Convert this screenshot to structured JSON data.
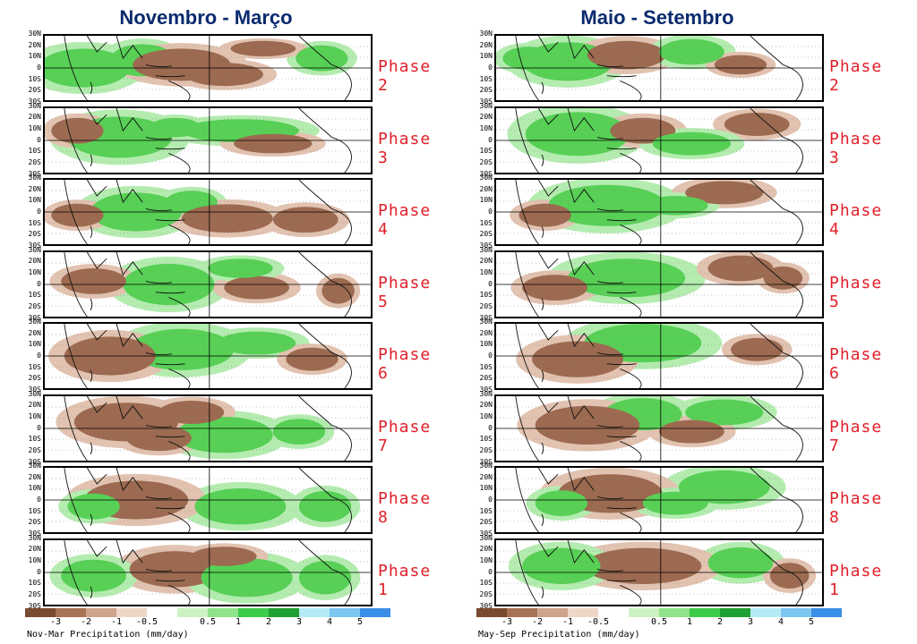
{
  "columns": [
    {
      "title": "Novembro - Março",
      "colorbar_caption": "Nov-Mar Precipitation (mm/day)",
      "phases": [
        {
          "label": "Phase 2",
          "blobs": [
            [
              0.14,
              0.55,
              0.05,
              0.16,
              "blue"
            ],
            [
              0.12,
              0.5,
              0.14,
              0.3,
              "green"
            ],
            [
              0.3,
              0.38,
              0.1,
              0.25,
              "green"
            ],
            [
              0.42,
              0.45,
              0.15,
              0.25,
              "brown"
            ],
            [
              0.55,
              0.6,
              0.12,
              0.18,
              "brown"
            ],
            [
              0.85,
              0.35,
              0.08,
              0.2,
              "green"
            ],
            [
              0.67,
              0.2,
              0.1,
              0.12,
              "brown"
            ]
          ]
        },
        {
          "label": "Phase 3",
          "blobs": [
            [
              0.25,
              0.48,
              0.07,
              0.22,
              "blue"
            ],
            [
              0.23,
              0.45,
              0.16,
              0.32,
              "green"
            ],
            [
              0.1,
              0.35,
              0.08,
              0.2,
              "brown"
            ],
            [
              0.6,
              0.35,
              0.18,
              0.18,
              "green"
            ],
            [
              0.7,
              0.55,
              0.12,
              0.15,
              "brown"
            ],
            [
              0.4,
              0.3,
              0.08,
              0.15,
              "green"
            ]
          ]
        },
        {
          "label": "Phase 4",
          "blobs": [
            [
              0.27,
              0.55,
              0.07,
              0.18,
              "blue"
            ],
            [
              0.28,
              0.5,
              0.14,
              0.3,
              "green"
            ],
            [
              0.45,
              0.35,
              0.08,
              0.18,
              "green"
            ],
            [
              0.56,
              0.6,
              0.14,
              0.22,
              "brown"
            ],
            [
              0.8,
              0.62,
              0.1,
              0.2,
              "brown"
            ],
            [
              0.1,
              0.55,
              0.08,
              0.18,
              "brown"
            ]
          ]
        },
        {
          "label": "Phase 5",
          "blobs": [
            [
              0.4,
              0.55,
              0.08,
              0.2,
              "blue"
            ],
            [
              0.38,
              0.5,
              0.14,
              0.32,
              "green"
            ],
            [
              0.15,
              0.45,
              0.1,
              0.2,
              "brown"
            ],
            [
              0.65,
              0.55,
              0.1,
              0.18,
              "brown"
            ],
            [
              0.9,
              0.6,
              0.05,
              0.2,
              "brown"
            ],
            [
              0.6,
              0.25,
              0.1,
              0.15,
              "green"
            ]
          ]
        },
        {
          "label": "Phase 6",
          "blobs": [
            [
              0.45,
              0.45,
              0.1,
              0.2,
              "blue"
            ],
            [
              0.42,
              0.4,
              0.16,
              0.32,
              "green"
            ],
            [
              0.2,
              0.5,
              0.14,
              0.3,
              "brown"
            ],
            [
              0.65,
              0.3,
              0.12,
              0.18,
              "green"
            ],
            [
              0.82,
              0.55,
              0.08,
              0.18,
              "brown"
            ]
          ]
        },
        {
          "label": "Phase 7",
          "blobs": [
            [
              0.55,
              0.62,
              0.07,
              0.18,
              "blue"
            ],
            [
              0.55,
              0.6,
              0.15,
              0.28,
              "green"
            ],
            [
              0.25,
              0.4,
              0.16,
              0.3,
              "brown"
            ],
            [
              0.35,
              0.65,
              0.1,
              0.2,
              "brown"
            ],
            [
              0.78,
              0.55,
              0.08,
              0.2,
              "green"
            ],
            [
              0.45,
              0.25,
              0.1,
              0.18,
              "brown"
            ]
          ]
        },
        {
          "label": "Phase 8",
          "blobs": [
            [
              0.58,
              0.58,
              0.06,
              0.18,
              "blue"
            ],
            [
              0.6,
              0.6,
              0.14,
              0.28,
              "green"
            ],
            [
              0.28,
              0.5,
              0.16,
              0.3,
              "brown"
            ],
            [
              0.86,
              0.6,
              0.08,
              0.24,
              "green"
            ],
            [
              0.15,
              0.6,
              0.08,
              0.2,
              "green"
            ]
          ]
        },
        {
          "label": "Phase 1",
          "blobs": [
            [
              0.4,
              0.45,
              0.14,
              0.28,
              "brown"
            ],
            [
              0.62,
              0.58,
              0.14,
              0.3,
              "green"
            ],
            [
              0.86,
              0.58,
              0.08,
              0.26,
              "green"
            ],
            [
              0.15,
              0.55,
              0.1,
              0.25,
              "green"
            ],
            [
              0.55,
              0.25,
              0.1,
              0.15,
              "brown"
            ]
          ]
        }
      ]
    },
    {
      "title": "Maio - Setembro",
      "colorbar_caption": "May-Sep Precipitation (mm/day)",
      "phases": [
        {
          "label": "Phase 2",
          "blobs": [
            [
              0.22,
              0.45,
              0.05,
              0.16,
              "blue"
            ],
            [
              0.22,
              0.4,
              0.14,
              0.3,
              "green"
            ],
            [
              0.4,
              0.3,
              0.12,
              0.22,
              "brown"
            ],
            [
              0.1,
              0.35,
              0.08,
              0.18,
              "green"
            ],
            [
              0.6,
              0.25,
              0.1,
              0.2,
              "green"
            ],
            [
              0.75,
              0.45,
              0.08,
              0.15,
              "brown"
            ]
          ]
        },
        {
          "label": "Phase 3",
          "blobs": [
            [
              0.25,
              0.45,
              0.08,
              0.22,
              "blue"
            ],
            [
              0.25,
              0.4,
              0.16,
              0.34,
              "green"
            ],
            [
              0.45,
              0.35,
              0.1,
              0.2,
              "brown"
            ],
            [
              0.8,
              0.25,
              0.1,
              0.18,
              "brown"
            ],
            [
              0.6,
              0.55,
              0.12,
              0.18,
              "green"
            ]
          ]
        },
        {
          "label": "Phase 4",
          "blobs": [
            [
              0.37,
              0.45,
              0.1,
              0.2,
              "blue"
            ],
            [
              0.34,
              0.4,
              0.18,
              0.32,
              "green"
            ],
            [
              0.7,
              0.2,
              0.12,
              0.18,
              "brown"
            ],
            [
              0.15,
              0.55,
              0.08,
              0.18,
              "brown"
            ],
            [
              0.55,
              0.4,
              0.1,
              0.15,
              "green"
            ]
          ]
        },
        {
          "label": "Phase 5",
          "blobs": [
            [
              0.42,
              0.45,
              0.1,
              0.2,
              "blue"
            ],
            [
              0.4,
              0.4,
              0.18,
              0.3,
              "green"
            ],
            [
              0.75,
              0.25,
              0.1,
              0.2,
              "brown"
            ],
            [
              0.18,
              0.55,
              0.1,
              0.2,
              "brown"
            ],
            [
              0.88,
              0.4,
              0.06,
              0.18,
              "brown"
            ]
          ]
        },
        {
          "label": "Phase 6",
          "blobs": [
            [
              0.42,
              0.3,
              0.08,
              0.16,
              "blue"
            ],
            [
              0.55,
              0.3,
              0.06,
              0.12,
              "blue"
            ],
            [
              0.45,
              0.3,
              0.18,
              0.3,
              "green"
            ],
            [
              0.25,
              0.55,
              0.14,
              0.28,
              "brown"
            ],
            [
              0.8,
              0.4,
              0.08,
              0.18,
              "brown"
            ]
          ]
        },
        {
          "label": "Phase 7",
          "blobs": [
            [
              0.42,
              0.25,
              0.06,
              0.14,
              "blue"
            ],
            [
              0.45,
              0.28,
              0.12,
              0.25,
              "green"
            ],
            [
              0.28,
              0.45,
              0.16,
              0.3,
              "brown"
            ],
            [
              0.7,
              0.25,
              0.12,
              0.2,
              "green"
            ],
            [
              0.6,
              0.55,
              0.1,
              0.18,
              "brown"
            ]
          ]
        },
        {
          "label": "Phase 8",
          "blobs": [
            [
              0.72,
              0.3,
              0.05,
              0.14,
              "blue"
            ],
            [
              0.7,
              0.3,
              0.14,
              0.26,
              "green"
            ],
            [
              0.35,
              0.4,
              0.16,
              0.3,
              "brown"
            ],
            [
              0.2,
              0.55,
              0.08,
              0.2,
              "green"
            ],
            [
              0.55,
              0.55,
              0.1,
              0.18,
              "green"
            ]
          ]
        },
        {
          "label": "Phase 1",
          "blobs": [
            [
              0.77,
              0.35,
              0.04,
              0.12,
              "blue"
            ],
            [
              0.75,
              0.35,
              0.1,
              0.24,
              "green"
            ],
            [
              0.45,
              0.4,
              0.18,
              0.28,
              "brown"
            ],
            [
              0.2,
              0.4,
              0.12,
              0.28,
              "green"
            ],
            [
              0.9,
              0.55,
              0.06,
              0.2,
              "brown"
            ]
          ]
        }
      ]
    }
  ],
  "lat_labels": [
    "30N",
    "20N",
    "10N",
    "0",
    "10S",
    "20S",
    "30S"
  ],
  "colorbar": {
    "colors": [
      "#7a4a30",
      "#a87255",
      "#cfa48b",
      "#efd7c8",
      "#ffffff",
      "#cdf2c2",
      "#8fe38a",
      "#3fcb4a",
      "#1fa032",
      "#b4ecf6",
      "#7cc6f2",
      "#3b8ee6"
    ],
    "ticks": [
      "-3",
      "-2",
      "-1",
      "-0.5",
      "0.5",
      "1",
      "2",
      "3",
      "4",
      "5"
    ]
  },
  "blob_colors": {
    "blue": "#4f90e8",
    "green": "#57d055",
    "brown": "#9c6a50",
    "lightgreen": "#b4ecb0",
    "lightbrown": "#e2c2b0"
  }
}
